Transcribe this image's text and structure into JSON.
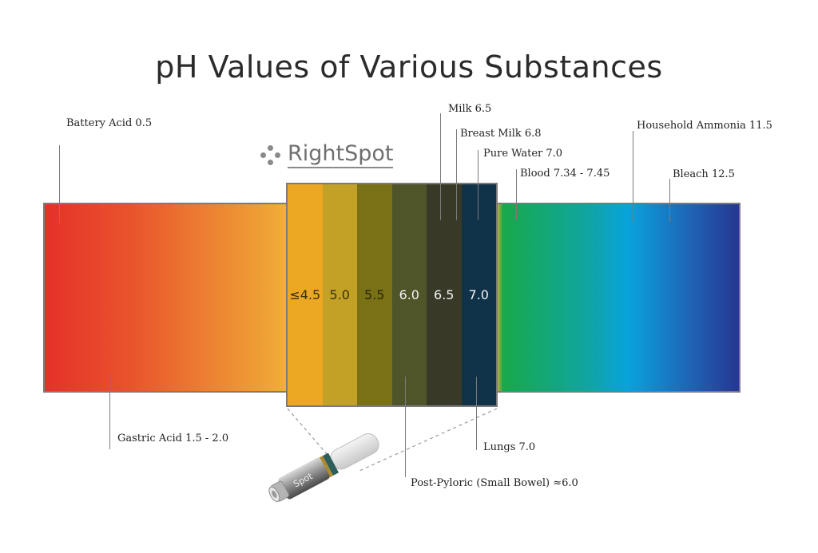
{
  "title": "pH Values of Various Substances",
  "logo": {
    "text": "RightSpot"
  },
  "device": {
    "text": "Spot"
  },
  "indicator": {
    "swatches": [
      {
        "label": "≤4.5",
        "color": "#eca822",
        "text_color": "#3a3010"
      },
      {
        "label": "5.0",
        "color": "#c2a126",
        "text_color": "#3a3010"
      },
      {
        "label": "5.5",
        "color": "#7a7015",
        "text_color": "#2a2608"
      },
      {
        "label": "6.0",
        "color": "#4f5528",
        "text_color": "#f2f2f2"
      },
      {
        "label": "6.5",
        "color": "#383a27",
        "text_color": "#f2f2f2"
      },
      {
        "label": "7.0",
        "color": "#0f3248",
        "text_color": "#f2f2f2"
      }
    ]
  },
  "labels": {
    "battery_acid": "Battery Acid 0.5",
    "gastric_acid": "Gastric Acid 1.5 - 2.0",
    "milk": "Milk 6.5",
    "breast_milk": "Breast Milk 6.8",
    "pure_water": "Pure Water 7.0",
    "blood": "Blood 7.34 - 7.45",
    "household_ammonia": "Household Ammonia 11.5",
    "bleach": "Bleach 12.5",
    "lungs": "Lungs 7.0",
    "post_pyloric": "Post-Pyloric (Small Bowel) ≈6.0"
  },
  "colors": {
    "border": "#7b7b7b",
    "acid": "#e53129",
    "neutral_green": "#17a94a",
    "alkaline_blue": "#263791"
  }
}
